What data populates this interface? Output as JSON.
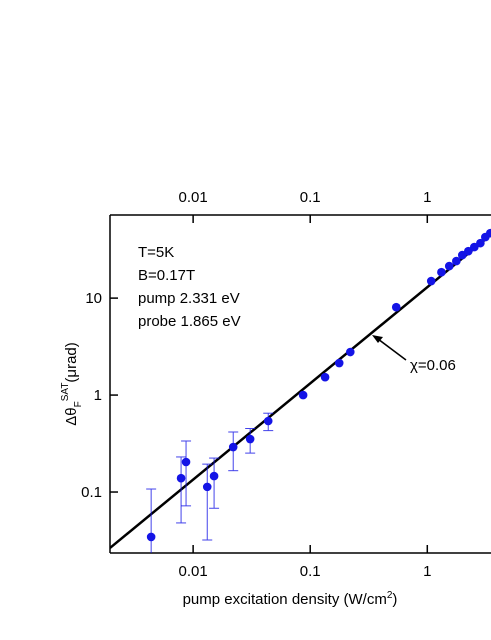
{
  "chart_data": {
    "type": "scatter",
    "x_label": {
      "text": "pump excitation density (W/cm",
      "sup": "2",
      "end": ")"
    },
    "y_label": {
      "text": "Δθ",
      "sub": "F",
      "sup": "SAT",
      "end": "(μrad)"
    },
    "info_lines": [
      "T=5K",
      "B=0.17T",
      "pump 2.331 eV",
      "probe 1.865 eV"
    ],
    "annotation": "χ=0.06",
    "x_scale": "log",
    "y_scale": "log",
    "xlim": [
      0.00195,
      3.5
    ],
    "ylim": [
      0.0235,
      72
    ],
    "xticks": [
      0.01,
      0.1,
      1
    ],
    "yticks": [
      0.1,
      1,
      10
    ],
    "series": [
      {
        "name": "data",
        "color": "#1414e6",
        "x": [
          0.00438,
          0.00789,
          0.0087,
          0.0132,
          0.0151,
          0.022,
          0.0307,
          0.0438,
          0.087,
          0.134,
          0.177,
          0.22,
          0.543,
          1.08,
          1.32,
          1.54,
          1.77,
          1.99,
          2.24,
          2.52,
          2.84,
          3.13,
          3.45
        ],
        "values": [
          0.0344,
          0.139,
          0.204,
          0.113,
          0.146,
          0.291,
          0.352,
          0.54,
          1.0,
          1.53,
          2.14,
          2.78,
          8.07,
          15.0,
          18.5,
          21.4,
          24.1,
          27.8,
          30.5,
          33.6,
          36.9,
          42.6,
          46.8
        ],
        "errors": [
          0.073,
          0.091,
          0.132,
          0.081,
          0.078,
          0.125,
          0.1,
          0.11,
          null,
          null,
          null,
          null,
          null,
          null,
          null,
          null,
          null,
          null,
          null,
          null,
          null,
          null,
          null
        ]
      }
    ],
    "fit": {
      "color": "#000000",
      "x": [
        0.00195,
        3.5
      ],
      "values": [
        0.0265,
        45
      ]
    }
  }
}
